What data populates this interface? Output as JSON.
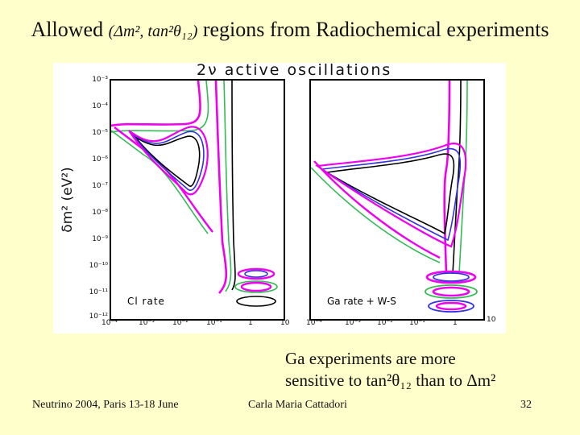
{
  "slide": {
    "title_main": "Allowed",
    "title_param": "(Δm², tan²θ₁₂)",
    "title_rest": "regions from Radiochemical experiments",
    "figure_header": "2ν  active oscillations",
    "ylabel": "δm² (eV²)",
    "yticks": [
      "10⁻³",
      "10⁻⁴",
      "10⁻⁵",
      "10⁻⁶",
      "10⁻⁷",
      "10⁻⁸",
      "10⁻⁹",
      "10⁻¹⁰",
      "10⁻¹¹",
      "10⁻¹²"
    ],
    "xticks_left": [
      "10⁻⁴",
      "10⁻³",
      "10⁻²",
      "10⁻¹",
      "1",
      "10"
    ],
    "xticks_right": [
      "10⁻⁴",
      "10⁻³",
      "10⁻²",
      "10⁻¹",
      "1",
      "10"
    ],
    "panel_left_label": "Cl rate",
    "panel_right_label": "Ga rate + W-S",
    "note_line1": "Ga experiments are more",
    "note_line2": "sensitive to tan²θ₁₂ than to Δm²",
    "footer_left": "Neutrino 2004, Paris 13-18 June",
    "footer_center": "Carla Maria Cattadori",
    "footer_right": "32"
  },
  "colors": {
    "background": "#ffffcc",
    "magenta": "#ee00ee",
    "green": "#33bb55",
    "blue": "#3333dd",
    "black": "#000000"
  }
}
